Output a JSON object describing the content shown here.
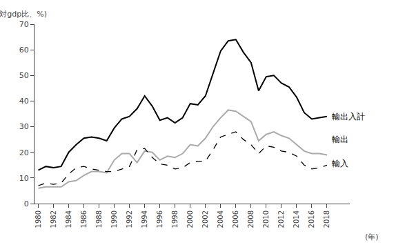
{
  "chart_data": {
    "type": "line",
    "x": [
      1980,
      1981,
      1982,
      1983,
      1984,
      1985,
      1986,
      1987,
      1988,
      1989,
      1990,
      1991,
      1992,
      1993,
      1994,
      1995,
      1996,
      1997,
      1998,
      1999,
      2000,
      2001,
      2002,
      2003,
      2004,
      2005,
      2006,
      2007,
      2008,
      2009,
      2010,
      2011,
      2012,
      2013,
      2014,
      2015,
      2016,
      2017,
      2018
    ],
    "series": [
      {
        "color": "#000000",
        "line_style": "solid",
        "values": [
          13.0,
          14.5,
          14.0,
          14.5,
          20.0,
          23.0,
          25.5,
          26.0,
          25.5,
          24.5,
          29.5,
          33.0,
          34.0,
          37.0,
          42.0,
          38.0,
          32.5,
          33.5,
          31.5,
          33.5,
          39.0,
          38.5,
          42.0,
          51.0,
          59.5,
          63.5,
          64.0,
          59.0,
          55.0,
          44.0,
          49.5,
          50.0,
          47.0,
          45.5,
          41.5,
          35.5,
          33.0,
          33.5,
          34.0
        ]
      },
      {
        "color": "#aaaaaa",
        "line_style": "solid",
        "values": [
          6.0,
          6.5,
          6.5,
          6.5,
          8.5,
          9.0,
          11.0,
          12.5,
          12.5,
          12.0,
          17.0,
          19.5,
          19.5,
          16.0,
          20.5,
          20.0,
          17.0,
          18.5,
          18.0,
          19.5,
          23.0,
          22.5,
          25.5,
          30.0,
          33.5,
          36.5,
          36.0,
          34.0,
          32.0,
          24.5,
          27.0,
          28.0,
          26.5,
          25.5,
          23.0,
          20.5,
          19.5,
          19.5,
          19.0
        ]
      },
      {
        "color": "#000000",
        "line_style": "dashed",
        "values": [
          7.0,
          8.0,
          7.5,
          8.0,
          11.5,
          14.0,
          14.5,
          13.5,
          13.0,
          12.5,
          12.5,
          13.5,
          14.5,
          21.0,
          21.5,
          18.0,
          15.5,
          15.0,
          13.5,
          14.0,
          16.0,
          16.5,
          16.5,
          21.0,
          26.0,
          27.0,
          28.0,
          25.0,
          23.0,
          19.5,
          22.5,
          22.0,
          20.5,
          20.0,
          18.5,
          15.0,
          13.5,
          14.0,
          15.0
        ]
      }
    ],
    "ylabel": "(対gdp比、%)",
    "xlabel": "(年)",
    "xlim": [
      1979.5,
      2021
    ],
    "xticks": [
      1980,
      1982,
      1984,
      1986,
      1988,
      1990,
      1992,
      1994,
      1996,
      1998,
      2000,
      2002,
      2004,
      2006,
      2008,
      2010,
      2012,
      2014,
      2016,
      2018
    ],
    "ylim": [
      0,
      70
    ],
    "yticks": [
      0,
      10,
      20,
      30,
      40,
      50,
      60,
      70
    ],
    "annotations": [
      {
        "text": "輸出入計",
        "x": 2018.5,
        "y": 34.0
      },
      {
        "text": "輸出",
        "x": 2018.5,
        "y": 25.0
      },
      {
        "text": "輸入",
        "x": 2018.5,
        "y": 15.5
      }
    ],
    "grid": false
  }
}
